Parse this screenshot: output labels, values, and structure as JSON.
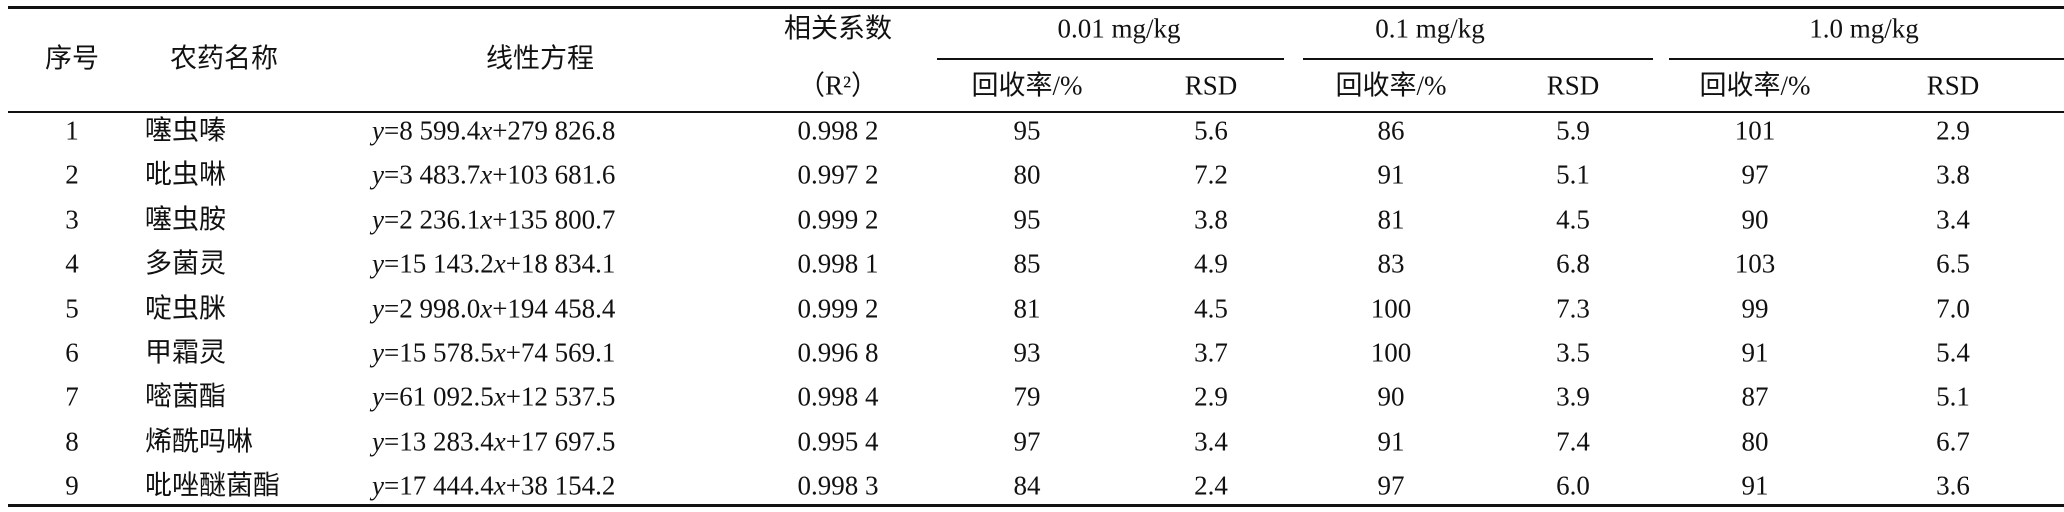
{
  "table": {
    "header": {
      "seq": "序号",
      "name": "农药名称",
      "equation": "线性方程",
      "r2": [
        "相关系数",
        "（R²）"
      ],
      "groups": [
        {
          "label": "0.01 mg/kg",
          "columns": [
            "回收率/%",
            "RSD"
          ]
        },
        {
          "label": "0.1 mg/kg",
          "columns": [
            "回收率/%",
            "RSD"
          ]
        },
        {
          "label": "1.0 mg/kg",
          "columns": [
            "回收率/%",
            "RSD"
          ]
        }
      ]
    },
    "rows": [
      [
        "1",
        "噻虫嗪",
        "y=8 599.4x+279 826.8",
        "0.998 2",
        "95",
        "5.6",
        "86",
        "5.9",
        "101",
        "2.9"
      ],
      [
        "2",
        "吡虫啉",
        "y=3 483.7x+103 681.6",
        "0.997 2",
        "80",
        "7.2",
        "91",
        "5.1",
        "97",
        "3.8"
      ],
      [
        "3",
        "噻虫胺",
        "y=2 236.1x+135 800.7",
        "0.999 2",
        "95",
        "3.8",
        "81",
        "4.5",
        "90",
        "3.4"
      ],
      [
        "4",
        "多菌灵",
        "y=15 143.2x+18 834.1",
        "0.998 1",
        "85",
        "4.9",
        "83",
        "6.8",
        "103",
        "6.5"
      ],
      [
        "5",
        "啶虫脒",
        "y=2 998.0x+194 458.4",
        "0.999 2",
        "81",
        "4.5",
        "100",
        "7.3",
        "99",
        "7.0"
      ],
      [
        "6",
        "甲霜灵",
        "y=15 578.5x+74 569.1",
        "0.996 8",
        "93",
        "3.7",
        "100",
        "3.5",
        "91",
        "5.4"
      ],
      [
        "7",
        "嘧菌酯",
        "y=61 092.5x+12 537.5",
        "0.998 4",
        "79",
        "2.9",
        "90",
        "3.9",
        "87",
        "5.1"
      ],
      [
        "8",
        "烯酰吗啉",
        "y=13 283.4x+17 697.5",
        "0.995 4",
        "97",
        "3.4",
        "91",
        "7.4",
        "80",
        "6.7"
      ],
      [
        "9",
        "吡唑醚菌酯",
        "y=17 444.4x+38 154.2",
        "0.998 3",
        "84",
        "2.4",
        "97",
        "6.0",
        "91",
        "3.6"
      ]
    ]
  }
}
